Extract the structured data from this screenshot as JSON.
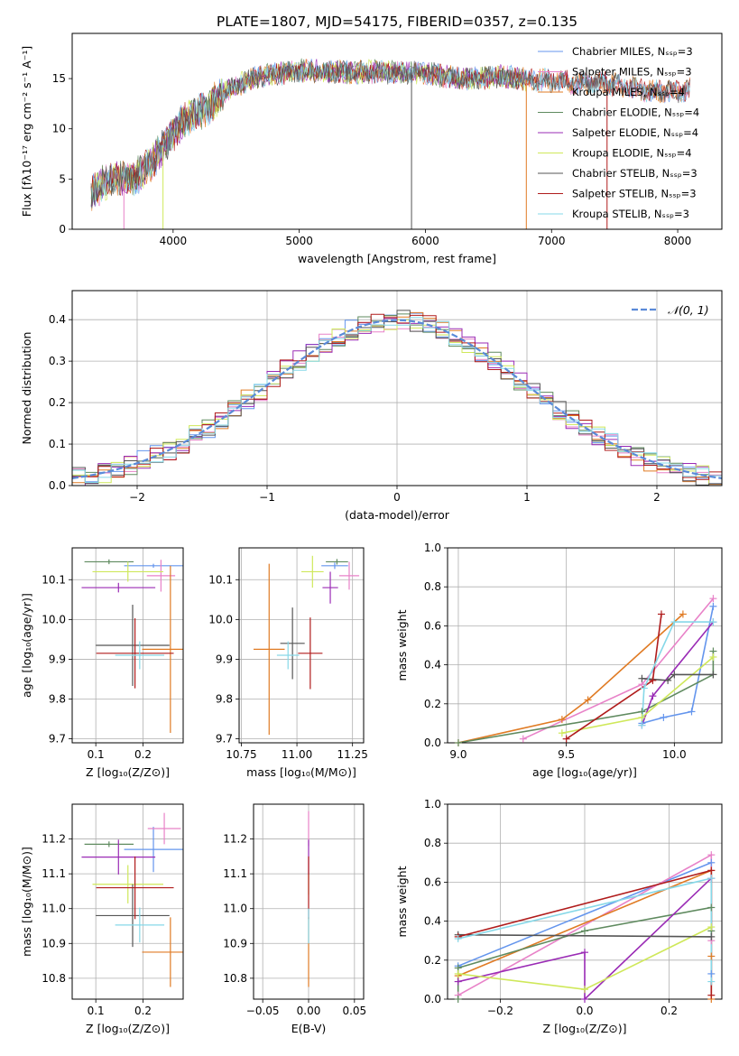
{
  "title": "PLATE=1807, MJD=54175, FIBERID=0357, z=0.135",
  "colors": {
    "Chabrier MILES": "#6495ed",
    "Salpeter MILES": "#e882c8",
    "Kroupa MILES": "#e07b24",
    "Chabrier ELODIE": "#5f8a5f",
    "Salpeter ELODIE": "#9a2bb5",
    "Kroupa ELODIE": "#cfe85a",
    "Chabrier STELIB": "#555555",
    "Salpeter STELIB": "#b01c1c",
    "Kroupa STELIB": "#86d8e8"
  },
  "chart_data": [
    {
      "id": "spectrum",
      "type": "line",
      "xlabel": "wavelength [Angstrom, rest frame]",
      "ylabel": "Flux [fλ10⁻¹⁷ erg cm⁻² s⁻¹ A⁻¹]",
      "xlim": [
        3200,
        8350
      ],
      "ylim": [
        0,
        19.5
      ],
      "xticks": [
        4000,
        5000,
        6000,
        7000,
        8000
      ],
      "yticks": [
        0,
        5,
        10,
        15
      ],
      "legend_loc": "right",
      "legend": [
        "Chabrier MILES, Nₛₛₚ=3",
        "Salpeter MILES, Nₛₛₚ=3",
        "Kroupa MILES, Nₛₛₚ=4",
        "Chabrier ELODIE, Nₛₛₚ=4",
        "Salpeter ELODIE, Nₛₛₚ=4",
        "Kroupa ELODIE, Nₛₛₚ=4",
        "Chabrier STELIB, Nₛₛₚ=3",
        "Salpeter STELIB, Nₛₛₚ=3",
        "Kroupa STELIB, Nₛₛₚ=3"
      ],
      "continuum": [
        [
          3350,
          3.4
        ],
        [
          3450,
          4.6
        ],
        [
          3550,
          5.0
        ],
        [
          3650,
          4.9
        ],
        [
          3750,
          5.6
        ],
        [
          3850,
          7.0
        ],
        [
          3950,
          8.7
        ],
        [
          4050,
          10.4
        ],
        [
          4150,
          11.3
        ],
        [
          4250,
          11.9
        ],
        [
          4400,
          13.6
        ],
        [
          4550,
          14.6
        ],
        [
          4700,
          15.3
        ],
        [
          4850,
          15.5
        ],
        [
          5000,
          15.8
        ],
        [
          5200,
          15.7
        ],
        [
          5400,
          15.6
        ],
        [
          5600,
          15.7
        ],
        [
          5800,
          15.6
        ],
        [
          6000,
          15.6
        ],
        [
          6200,
          15.1
        ],
        [
          6400,
          15.0
        ],
        [
          6600,
          15.2
        ],
        [
          6800,
          14.9
        ],
        [
          7000,
          14.8
        ],
        [
          7200,
          14.5
        ],
        [
          7400,
          14.6
        ],
        [
          7600,
          14.2
        ],
        [
          7800,
          13.7
        ],
        [
          8000,
          13.7
        ],
        [
          8100,
          14.1
        ]
      ]
    },
    {
      "id": "residuals",
      "type": "bar",
      "xlabel": "(data-model)/error",
      "ylabel": "Normed distribution",
      "xlim": [
        -2.5,
        2.5
      ],
      "ylim": [
        0,
        0.47
      ],
      "xticks": [
        -2,
        -1,
        0,
        1,
        2
      ],
      "yticks": [
        0.0,
        0.1,
        0.2,
        0.3,
        0.4
      ],
      "bin_width": 0.1,
      "grid": true,
      "legend": [
        "𝒩(0, 1)"
      ],
      "legend_loc": "top-right"
    },
    {
      "id": "age-vs-Z",
      "type": "scatter",
      "xlabel": "Z [log₁₀(Z/Z⊙)]",
      "ylabel": "age  [log₁₀(age/yr)]",
      "xlim": [
        0.05,
        0.285
      ],
      "ylim": [
        9.69,
        10.18
      ],
      "xticks": [
        0.1,
        0.2
      ],
      "yticks": [
        9.7,
        9.8,
        9.9,
        10.0,
        10.1
      ],
      "grid": true,
      "points": [
        {
          "model": "Chabrier MILES",
          "x": 0.222,
          "y": 10.135,
          "xerr": 0.062,
          "yerr": 0.005
        },
        {
          "model": "Salpeter MILES",
          "x": 0.238,
          "y": 10.11,
          "xerr": 0.03,
          "yerr": 0.04
        },
        {
          "model": "Kroupa MILES",
          "x": 0.258,
          "y": 9.925,
          "xerr": 0.06,
          "yerr": 0.21
        },
        {
          "model": "Chabrier ELODIE",
          "x": 0.128,
          "y": 10.145,
          "xerr": 0.052,
          "yerr": 0.006
        },
        {
          "model": "Salpeter ELODIE",
          "x": 0.148,
          "y": 10.08,
          "xerr": 0.078,
          "yerr": 0.012
        },
        {
          "model": "Kroupa ELODIE",
          "x": 0.168,
          "y": 10.12,
          "xerr": 0.075,
          "yerr": 0.025
        },
        {
          "model": "Chabrier STELIB",
          "x": 0.178,
          "y": 9.935,
          "xerr": 0.078,
          "yerr": 0.102
        },
        {
          "model": "Salpeter STELIB",
          "x": 0.183,
          "y": 9.915,
          "xerr": 0.082,
          "yerr": 0.088
        },
        {
          "model": "Kroupa STELIB",
          "x": 0.193,
          "y": 9.91,
          "xerr": 0.052,
          "yerr": 0.035
        }
      ]
    },
    {
      "id": "age-vs-mass",
      "type": "scatter",
      "xlabel": "mass [log₁₀(M/M⊙)]",
      "ylabel": "",
      "xlim": [
        10.74,
        11.3
      ],
      "ylim": [
        9.69,
        10.18
      ],
      "xticks": [
        10.75,
        11.0,
        11.25
      ],
      "yticks": [
        9.7,
        9.8,
        9.9,
        10.0,
        10.1
      ],
      "grid": true,
      "points": [
        {
          "model": "Chabrier MILES",
          "x": 11.17,
          "y": 10.135,
          "xerr": 0.06,
          "yerr": 0.008
        },
        {
          "model": "Salpeter MILES",
          "x": 11.235,
          "y": 10.11,
          "xerr": 0.045,
          "yerr": 0.035
        },
        {
          "model": "Kroupa MILES",
          "x": 10.875,
          "y": 9.925,
          "xerr": 0.07,
          "yerr": 0.215
        },
        {
          "model": "Chabrier ELODIE",
          "x": 11.18,
          "y": 10.145,
          "xerr": 0.05,
          "yerr": 0.007
        },
        {
          "model": "Salpeter ELODIE",
          "x": 11.15,
          "y": 10.08,
          "xerr": 0.035,
          "yerr": 0.04
        },
        {
          "model": "Kroupa ELODIE",
          "x": 11.07,
          "y": 10.12,
          "xerr": 0.05,
          "yerr": 0.04
        },
        {
          "model": "Chabrier STELIB",
          "x": 10.98,
          "y": 9.94,
          "xerr": 0.055,
          "yerr": 0.09
        },
        {
          "model": "Salpeter STELIB",
          "x": 11.06,
          "y": 9.915,
          "xerr": 0.055,
          "yerr": 0.09
        },
        {
          "model": "Kroupa STELIB",
          "x": 10.96,
          "y": 9.91,
          "xerr": 0.05,
          "yerr": 0.035
        }
      ]
    },
    {
      "id": "weight-vs-age",
      "type": "line",
      "xlabel": "age  [log₁₀(age/yr)]",
      "ylabel": "mass weight",
      "xlim": [
        8.95,
        10.22
      ],
      "ylim": [
        0,
        1.0
      ],
      "xticks": [
        9.0,
        9.5,
        10.0
      ],
      "yticks": [
        0.0,
        0.2,
        0.4,
        0.6,
        0.8,
        1.0
      ],
      "grid": true,
      "series": [
        {
          "model": "Chabrier MILES",
          "x": [
            9.85,
            9.95,
            10.08,
            10.18
          ],
          "y": [
            0.1,
            0.13,
            0.16,
            0.7
          ]
        },
        {
          "model": "Salpeter MILES",
          "x": [
            9.3,
            9.85,
            10.18
          ],
          "y": [
            0.02,
            0.3,
            0.74
          ]
        },
        {
          "model": "Kroupa MILES",
          "x": [
            9.0,
            9.48,
            9.6,
            10.04
          ],
          "y": [
            0.0,
            0.12,
            0.22,
            0.66
          ]
        },
        {
          "model": "Chabrier ELODIE",
          "x": [
            9.0,
            9.85,
            10.18,
            10.18
          ],
          "y": [
            0.0,
            0.16,
            0.35,
            0.47
          ]
        },
        {
          "model": "Salpeter ELODIE",
          "x": [
            9.85,
            9.9,
            10.18
          ],
          "y": [
            0.09,
            0.24,
            0.62
          ]
        },
        {
          "model": "Kroupa ELODIE",
          "x": [
            9.48,
            9.85,
            10.18
          ],
          "y": [
            0.05,
            0.13,
            0.44
          ]
        },
        {
          "model": "Chabrier STELIB",
          "x": [
            9.85,
            9.97,
            10.0,
            10.18
          ],
          "y": [
            0.33,
            0.32,
            0.35,
            0.35
          ]
        },
        {
          "model": "Salpeter STELIB",
          "x": [
            9.5,
            9.9,
            9.94
          ],
          "y": [
            0.02,
            0.32,
            0.66
          ]
        },
        {
          "model": "Kroupa STELIB",
          "x": [
            9.85,
            9.86,
            10.0,
            10.18
          ],
          "y": [
            0.09,
            0.28,
            0.62,
            0.62
          ]
        }
      ]
    },
    {
      "id": "mass-vs-Z",
      "type": "scatter",
      "xlabel": "Z [log₁₀(Z/Z⊙)]",
      "ylabel": "mass [log₁₀(M/M⊙)]",
      "xlim": [
        0.05,
        0.285
      ],
      "ylim": [
        10.74,
        11.3
      ],
      "xticks": [
        0.1,
        0.2
      ],
      "yticks": [
        10.8,
        10.9,
        11.0,
        11.1,
        11.2
      ],
      "grid": true,
      "points": [
        {
          "model": "Chabrier MILES",
          "x": 0.222,
          "y": 11.17,
          "xerr": 0.062,
          "yerr": 0.065
        },
        {
          "model": "Salpeter MILES",
          "x": 0.245,
          "y": 11.23,
          "xerr": 0.035,
          "yerr": 0.045
        },
        {
          "model": "Kroupa MILES",
          "x": 0.258,
          "y": 10.875,
          "xerr": 0.06,
          "yerr": 0.1
        },
        {
          "model": "Chabrier ELODIE",
          "x": 0.128,
          "y": 11.185,
          "xerr": 0.052,
          "yerr": 0.008
        },
        {
          "model": "Salpeter ELODIE",
          "x": 0.148,
          "y": 11.148,
          "xerr": 0.078,
          "yerr": 0.05
        },
        {
          "model": "Kroupa ELODIE",
          "x": 0.168,
          "y": 11.07,
          "xerr": 0.075,
          "yerr": 0.055
        },
        {
          "model": "Chabrier STELIB",
          "x": 0.178,
          "y": 10.98,
          "xerr": 0.078,
          "yerr": 0.09
        },
        {
          "model": "Salpeter STELIB",
          "x": 0.183,
          "y": 11.06,
          "xerr": 0.082,
          "yerr": 0.09
        },
        {
          "model": "Kroupa STELIB",
          "x": 0.193,
          "y": 10.953,
          "xerr": 0.052,
          "yerr": 0.05
        }
      ]
    },
    {
      "id": "mass-vs-ebv",
      "type": "scatter",
      "xlabel": "E(B-V)",
      "ylabel": "",
      "xlim": [
        -0.06,
        0.06
      ],
      "ylim": [
        10.74,
        11.3
      ],
      "xticks": [
        -0.05,
        0.0,
        0.05
      ],
      "yticks": [
        10.8,
        10.9,
        11.0,
        11.1,
        11.2
      ],
      "grid": true,
      "points": [
        {
          "model": "Salpeter MILES",
          "x": 0.0,
          "y": 11.23,
          "xerr": 0.0,
          "yerr": 0.05
        },
        {
          "model": "Kroupa MILES",
          "x": 0.0,
          "y": 10.875,
          "xerr": 0.0,
          "yerr": 0.1
        },
        {
          "model": "Salpeter ELODIE",
          "x": 0.0,
          "y": 11.148,
          "xerr": 0.0,
          "yerr": 0.05
        },
        {
          "model": "Kroupa ELODIE",
          "x": 0.0,
          "y": 11.07,
          "xerr": 0.0,
          "yerr": 0.03
        },
        {
          "model": "Salpeter STELIB",
          "x": 0.0,
          "y": 11.06,
          "xerr": 0.0,
          "yerr": 0.09
        },
        {
          "model": "Kroupa STELIB",
          "x": 0.0,
          "y": 10.95,
          "xerr": 0.0,
          "yerr": 0.05
        }
      ]
    },
    {
      "id": "weight-vs-Z",
      "type": "line",
      "xlabel": "Z [log₁₀(Z/Z⊙)]",
      "ylabel": "mass weight",
      "xlim": [
        -0.325,
        0.325
      ],
      "ylim": [
        0,
        1.0
      ],
      "xticks": [
        -0.2,
        0.0,
        0.2
      ],
      "yticks": [
        0.0,
        0.2,
        0.4,
        0.6,
        0.8,
        1.0
      ],
      "grid": true,
      "series": [
        {
          "model": "Chabrier MILES",
          "x": [
            -0.3,
            0.3,
            0.3
          ],
          "y": [
            0.17,
            0.7,
            0.13
          ]
        },
        {
          "model": "Salpeter MILES",
          "x": [
            -0.3,
            0.3,
            0.3
          ],
          "y": [
            0.02,
            0.74,
            0.3
          ]
        },
        {
          "model": "Kroupa MILES",
          "x": [
            -0.3,
            0.3,
            0.3,
            0.3
          ],
          "y": [
            0.12,
            0.66,
            0.22,
            0.0
          ]
        },
        {
          "model": "Chabrier ELODIE",
          "x": [
            -0.3,
            -0.3,
            0.0,
            0.3,
            0.3
          ],
          "y": [
            0.0,
            0.16,
            0.35,
            0.47,
            0.35
          ]
        },
        {
          "model": "Salpeter ELODIE",
          "x": [
            -0.3,
            0.0,
            0.0,
            0.3
          ],
          "y": [
            0.09,
            0.24,
            0.0,
            0.62
          ]
        },
        {
          "model": "Kroupa ELODIE",
          "x": [
            -0.3,
            0.0,
            0.3
          ],
          "y": [
            0.13,
            0.05,
            0.37
          ]
        },
        {
          "model": "Chabrier STELIB",
          "x": [
            -0.3,
            0.3
          ],
          "y": [
            0.33,
            0.32
          ]
        },
        {
          "model": "Salpeter STELIB",
          "x": [
            -0.3,
            0.3,
            0.3
          ],
          "y": [
            0.32,
            0.66,
            0.02
          ]
        },
        {
          "model": "Kroupa STELIB",
          "x": [
            -0.3,
            0.3,
            0.3
          ],
          "y": [
            0.31,
            0.62,
            0.09
          ]
        }
      ]
    }
  ]
}
